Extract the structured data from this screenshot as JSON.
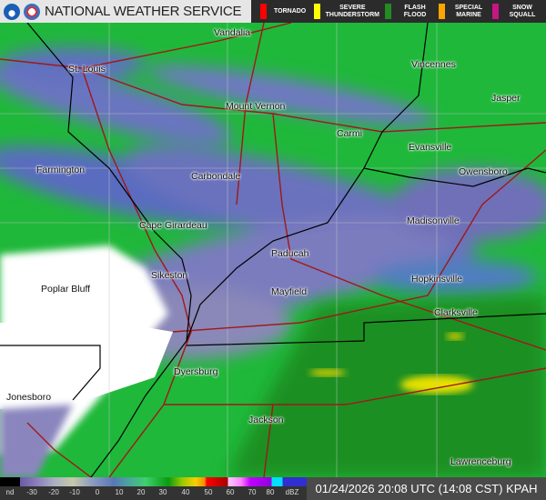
{
  "header": {
    "title": "NATIONAL WEATHER SERVICE",
    "logos": [
      "noaa-logo",
      "nws-logo"
    ]
  },
  "warnings": [
    {
      "label": "TORNADO",
      "color": "#ff0000"
    },
    {
      "label": "SEVERE\nTHUNDERSTORM",
      "color": "#ffff00"
    },
    {
      "label": "FLASH\nFLOOD",
      "color": "#228b22"
    },
    {
      "label": "SPECIAL\nMARINE",
      "color": "#ffa500"
    },
    {
      "label": "SNOW\nSQUALL",
      "color": "#c71585"
    }
  ],
  "cities": [
    "Vandalia",
    "St. Louis",
    "Vincennes",
    "Jasper",
    "Mount Vernon",
    "Carmi",
    "Evansville",
    "Owensboro",
    "Farmington",
    "Carbondale",
    "Cape Girardeau",
    "Madisonville",
    "Paducah",
    "Sikeston",
    "Poplar Bluff",
    "Hopkinsville",
    "Mayfield",
    "Clarksville",
    "Dyersburg",
    "Jonesboro",
    "Jackson",
    "Lawrenceburg"
  ],
  "scale": {
    "ticks": [
      "nd",
      "-30",
      "-20",
      "-10",
      "0",
      "10",
      "20",
      "30",
      "40",
      "50",
      "60",
      "70",
      "80",
      "dBZ"
    ]
  },
  "timestamp": "01/24/2026 20:08 UTC (14:08 CST)",
  "station": "KPAH"
}
